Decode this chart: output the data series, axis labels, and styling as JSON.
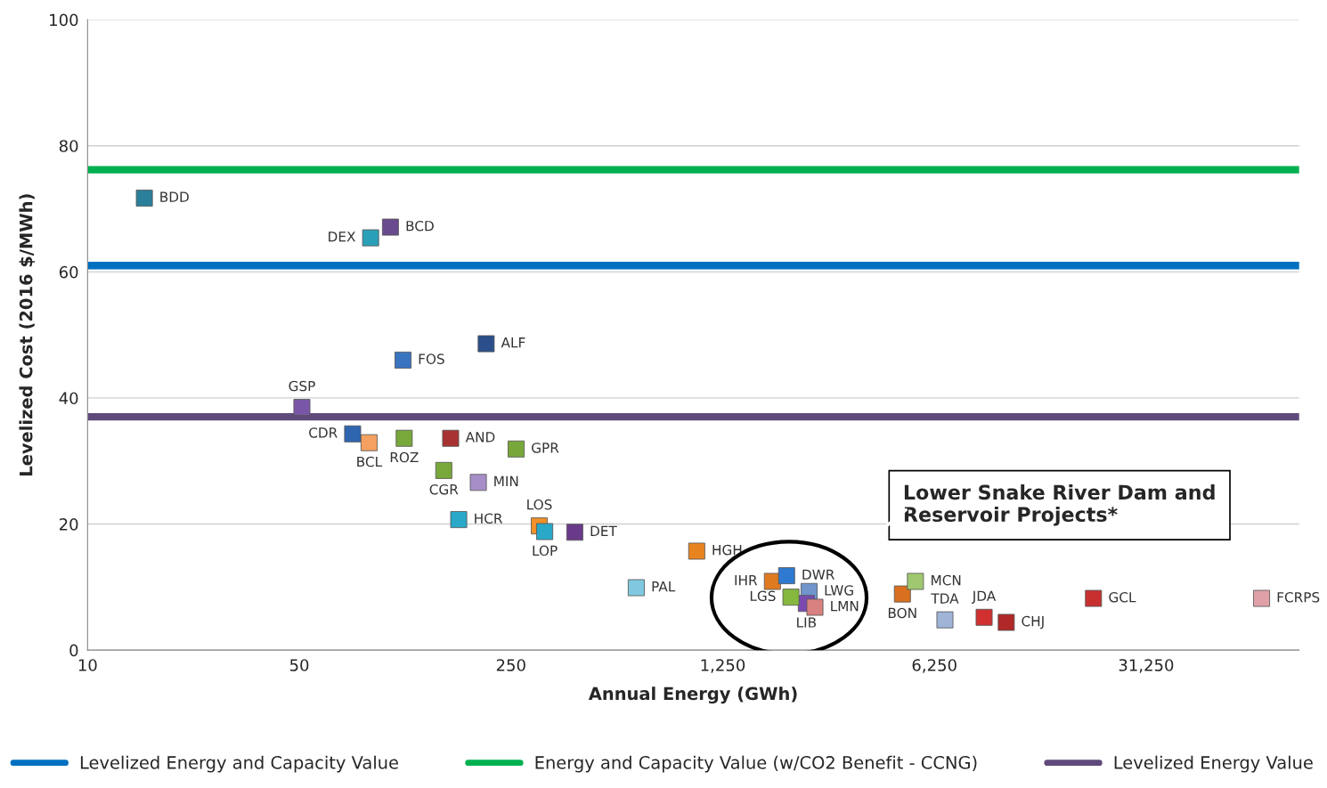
{
  "chart_data": {
    "type": "scatter",
    "xlabel": "Annual Energy (GWh)",
    "ylabel": "Levelized Cost (2016 $/MWh)",
    "log": "x",
    "xlim": [
      10,
      100000
    ],
    "xticks": [
      10,
      50,
      250,
      {
        "value": 1250,
        "label": "1,250"
      },
      {
        "value": 6250,
        "label": "6,250"
      },
      {
        "value": 31250,
        "label": "31,250"
      }
    ],
    "ylim": [
      0,
      100
    ],
    "yticks": [
      0,
      20,
      40,
      60,
      80,
      100
    ],
    "grid": "y",
    "marker": "square",
    "legend": "bottom",
    "x": [
      15.4,
      100,
      86,
      207,
      110,
      51,
      75,
      111,
      85,
      158,
      260,
      150,
      195,
      168,
      310,
      323,
      406,
      1026,
      648,
      1824,
      2032,
      2410,
      2360,
      2520,
      2100,
      4900,
      5410,
      6770,
      9120,
      10790,
      20940,
      75150
    ],
    "values": [
      71.7,
      67.1,
      65.4,
      48.6,
      46.0,
      38.5,
      34.3,
      33.6,
      32.9,
      33.6,
      31.9,
      28.5,
      26.6,
      20.7,
      19.7,
      18.8,
      18.7,
      15.7,
      9.9,
      10.9,
      11.8,
      9.3,
      7.4,
      6.8,
      8.4,
      8.9,
      10.9,
      4.8,
      5.2,
      4.4,
      8.2,
      8.2
    ],
    "colors": [
      "#2a7f9a",
      "#6a4a8e",
      "#2aa0b8",
      "#2a4f8a",
      "#3a74c0",
      "#7a56a8",
      "#2f66b0",
      "#78a83a",
      "#f4a060",
      "#a83232",
      "#78a83a",
      "#78a83a",
      "#a88ec8",
      "#2aa8c8",
      "#f0902a",
      "#2aa8c8",
      "#6a3a8a",
      "#e8841f",
      "#80c8e0",
      "#e07a20",
      "#2f7ad0",
      "#7094cc",
      "#7a4ab0",
      "#d98080",
      "#86b840",
      "#d9701f",
      "#a0c870",
      "#a0b4d8",
      "#d03030",
      "#b02828",
      "#c83030",
      "#e0a0a8"
    ],
    "ref_lines": [
      {
        "axis": "y",
        "value": 61,
        "label": "Levelized Energy and Capacity Value",
        "color": "#0070c0"
      },
      {
        "axis": "y",
        "value": 76.2,
        "label": "Energy and Capacity Value (w/CO2 Benefit - CCNG)",
        "color": "#00b050"
      },
      {
        "axis": "y",
        "value": 37,
        "label": "Levelized Energy Value",
        "color": "#604a7b"
      }
    ],
    "annotations": [
      {
        "text": "BDD",
        "x": 15.4,
        "y": 71.7
      },
      {
        "text": "BCD",
        "x": 100,
        "y": 67.1
      },
      {
        "text": "DEX",
        "x": 86,
        "y": 65.4
      },
      {
        "text": "ALF",
        "x": 207,
        "y": 48.6
      },
      {
        "text": "FOS",
        "x": 110,
        "y": 46.0
      },
      {
        "text": "GSP",
        "x": 51,
        "y": 38.5
      },
      {
        "text": "CDR",
        "x": 75,
        "y": 34.3
      },
      {
        "text": "ROZ",
        "x": 111,
        "y": 33.6
      },
      {
        "text": "BCL",
        "x": 85,
        "y": 32.9
      },
      {
        "text": "AND",
        "x": 158,
        "y": 33.6
      },
      {
        "text": "GPR",
        "x": 260,
        "y": 31.9
      },
      {
        "text": "CGR",
        "x": 150,
        "y": 28.5
      },
      {
        "text": "MIN",
        "x": 195,
        "y": 26.6
      },
      {
        "text": "HCR",
        "x": 168,
        "y": 20.7
      },
      {
        "text": "LOS",
        "x": 310,
        "y": 19.7
      },
      {
        "text": "LOP",
        "x": 323,
        "y": 18.8
      },
      {
        "text": "DET",
        "x": 406,
        "y": 18.7
      },
      {
        "text": "HGH",
        "x": 1026,
        "y": 15.7
      },
      {
        "text": "PAL",
        "x": 648,
        "y": 9.9
      },
      {
        "text": "IHR",
        "x": 1824,
        "y": 10.9
      },
      {
        "text": "DWR",
        "x": 2032,
        "y": 11.8
      },
      {
        "text": "LWG",
        "x": 2410,
        "y": 9.3
      },
      {
        "text": "LIB",
        "x": 2360,
        "y": 7.4
      },
      {
        "text": "LMN",
        "x": 2520,
        "y": 6.8
      },
      {
        "text": "LGS",
        "x": 2100,
        "y": 8.4
      },
      {
        "text": "BON",
        "x": 4900,
        "y": 8.9
      },
      {
        "text": "MCN",
        "x": 5410,
        "y": 10.9
      },
      {
        "text": "TDA",
        "x": 6770,
        "y": 4.8
      },
      {
        "text": "JDA",
        "x": 9120,
        "y": 5.2
      },
      {
        "text": "CHJ",
        "x": 10790,
        "y": 4.4
      },
      {
        "text": "GCL",
        "x": 20940,
        "y": 8.2
      },
      {
        "text": "FCRPS",
        "x": 75150,
        "y": 8.2
      },
      "Lower Snake River Dam and\nReservoir Projects*"
    ]
  }
}
